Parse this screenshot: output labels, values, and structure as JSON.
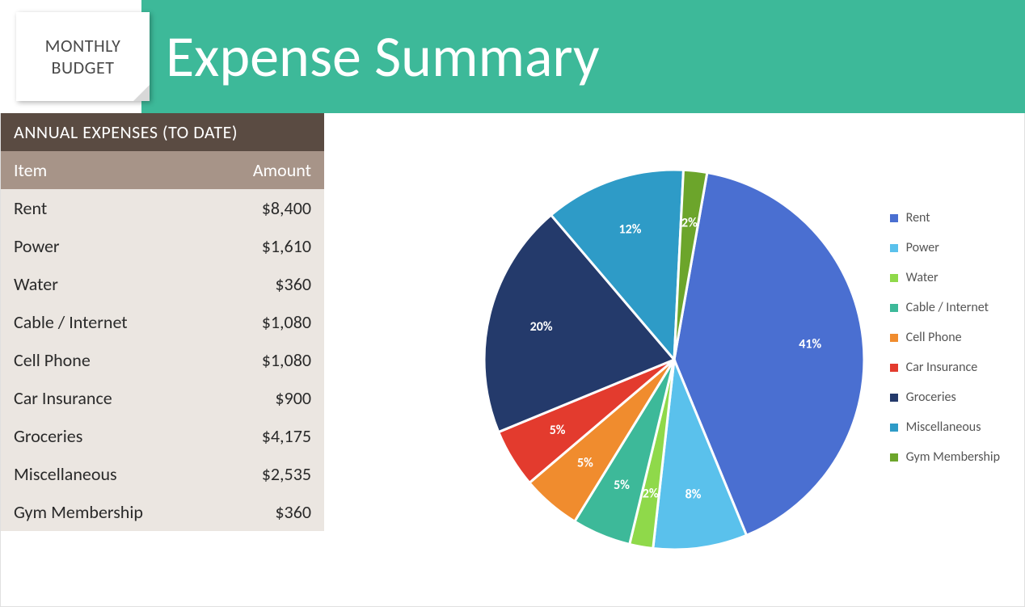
{
  "header": {
    "badge_line1": "MONTHLY",
    "badge_line2": "BUDGET",
    "title": "Expense Summary",
    "title_bg": "#3db999",
    "title_color": "#ffffff",
    "title_fontsize": 72,
    "title_fontweight": 300,
    "badge_bg": "#ffffff",
    "badge_fold_color": "#d8d8d8",
    "badge_text_color": "#4a4a4a",
    "badge_fontsize": 22
  },
  "table": {
    "title": "ANNUAL EXPENSES (TO DATE)",
    "title_bg": "#5a4b42",
    "title_color": "#ffffff",
    "header_bg": "#a79488",
    "header_color": "#ffffff",
    "body_bg": "#ebe6e1",
    "body_color": "#2a2a2a",
    "fontsize": 22,
    "columns": [
      "Item",
      "Amount"
    ],
    "rows": [
      [
        "Rent",
        "$8,400"
      ],
      [
        "Power",
        "$1,610"
      ],
      [
        "Water",
        "$360"
      ],
      [
        "Cable / Internet",
        "$1,080"
      ],
      [
        "Cell Phone",
        "$1,080"
      ],
      [
        "Car Insurance",
        "$900"
      ],
      [
        "Groceries",
        "$4,175"
      ],
      [
        "Miscellaneous",
        "$2,535"
      ],
      [
        "Gym Membership",
        "$360"
      ]
    ]
  },
  "chart": {
    "type": "pie",
    "background_color": "#ffffff",
    "slice_border_color": "#ffffff",
    "slice_border_width": 3,
    "label_color": "#ffffff",
    "label_fontsize": 16,
    "label_fontweight": 700,
    "radius": 235,
    "start_angle_deg": -80,
    "direction": "clockwise",
    "legend_fontsize": 16,
    "legend_text_color": "#555555",
    "legend_swatch_size": 10,
    "slices": [
      {
        "label": "Rent",
        "percent": 41,
        "color": "#4a6fd1"
      },
      {
        "label": "Power",
        "percent": 8,
        "color": "#5ac1ec"
      },
      {
        "label": "Water",
        "percent": 2,
        "color": "#8fd94a"
      },
      {
        "label": "Cable / Internet",
        "percent": 5,
        "color": "#3db999"
      },
      {
        "label": "Cell Phone",
        "percent": 5,
        "color": "#f08c2e"
      },
      {
        "label": "Car Insurance",
        "percent": 5,
        "color": "#e33b2e"
      },
      {
        "label": "Groceries",
        "percent": 20,
        "color": "#243a6b"
      },
      {
        "label": "Miscellaneous",
        "percent": 12,
        "color": "#2e9bc7"
      },
      {
        "label": "Gym Membership",
        "percent": 2,
        "color": "#6ca52b"
      }
    ]
  }
}
